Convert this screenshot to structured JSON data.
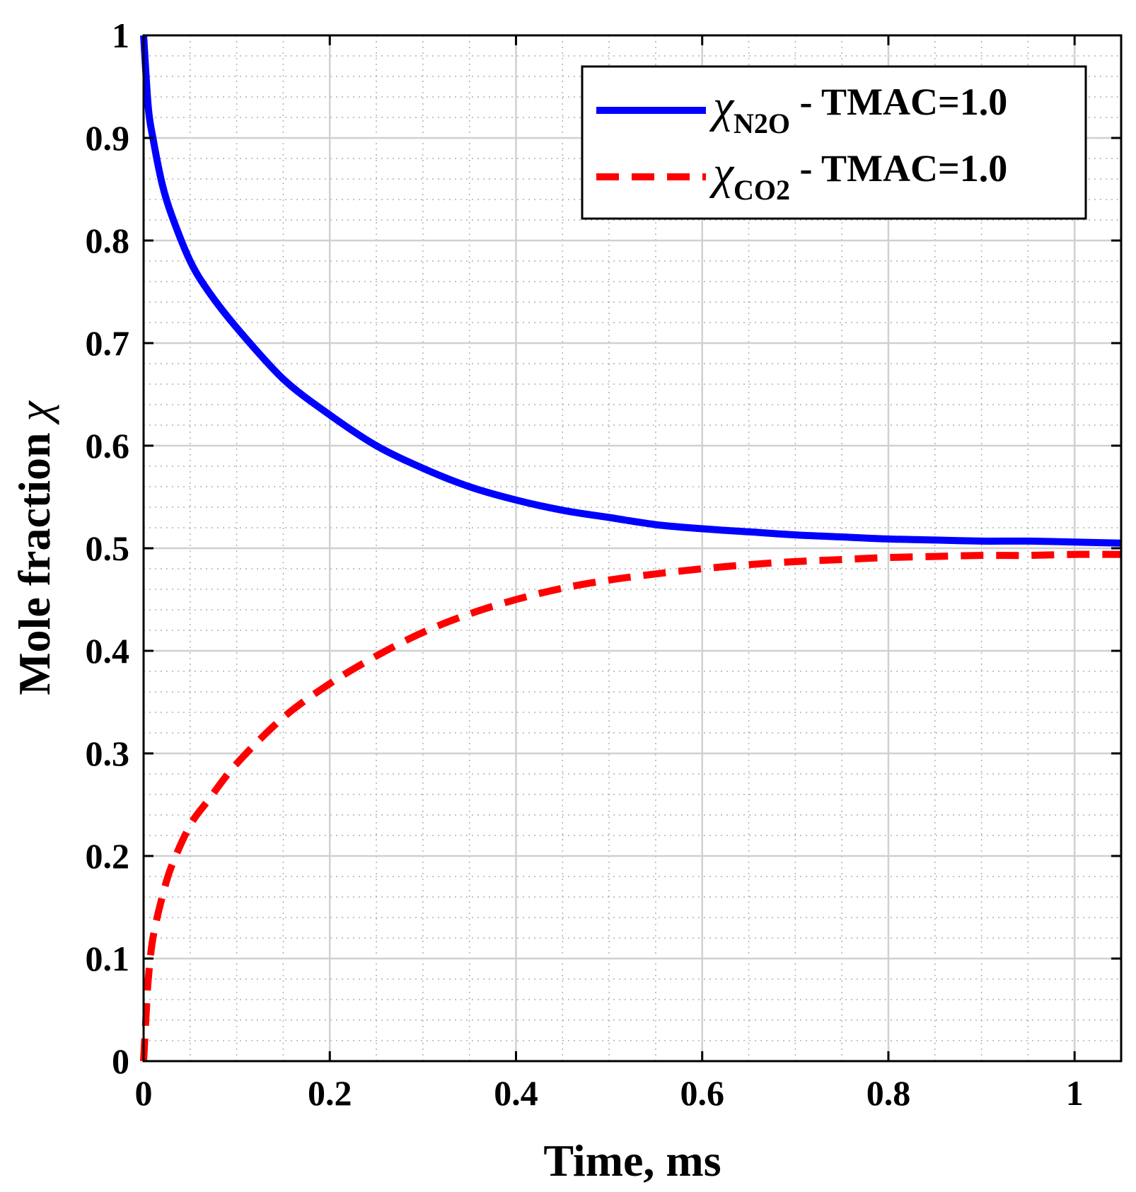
{
  "chart_data": {
    "type": "line",
    "xlabel": "Time, ms",
    "ylabel": "Mole fraction χ",
    "ylabel_text": "Mole fraction ",
    "ylabel_symbol": "χ",
    "xlim": [
      0,
      1.05
    ],
    "ylim": [
      0,
      1
    ],
    "x_ticks": [
      0,
      0.2,
      0.4,
      0.6,
      0.8,
      1
    ],
    "x_tick_labels": [
      "0",
      "0.2",
      "0.4",
      "0.6",
      "0.8",
      "1"
    ],
    "y_ticks": [
      0,
      0.1,
      0.2,
      0.3,
      0.4,
      0.5,
      0.6,
      0.7,
      0.8,
      0.9,
      1
    ],
    "y_tick_labels": [
      "0",
      "0.1",
      "0.2",
      "0.3",
      "0.4",
      "0.5",
      "0.6",
      "0.7",
      "0.8",
      "0.9",
      "1"
    ],
    "grid": true,
    "minor_grid": true,
    "legend_position": "top-right",
    "series": [
      {
        "name": "χN2O - TMAC=1.0",
        "symbol": "χ",
        "subscript": "N2O",
        "suffix": " - TMAC=1.0",
        "style": "solid",
        "color": "#0000ff",
        "x": [
          0,
          0.005,
          0.01,
          0.02,
          0.03,
          0.05,
          0.07,
          0.1,
          0.15,
          0.2,
          0.25,
          0.3,
          0.35,
          0.4,
          0.45,
          0.5,
          0.55,
          0.6,
          0.65,
          0.7,
          0.75,
          0.8,
          0.85,
          0.9,
          0.95,
          1.0,
          1.05
        ],
        "values": [
          1.0,
          0.93,
          0.9,
          0.855,
          0.825,
          0.78,
          0.75,
          0.715,
          0.665,
          0.63,
          0.6,
          0.578,
          0.56,
          0.547,
          0.537,
          0.53,
          0.523,
          0.519,
          0.516,
          0.513,
          0.511,
          0.509,
          0.508,
          0.507,
          0.507,
          0.506,
          0.505
        ]
      },
      {
        "name": "χCO2 - TMAC=1.0",
        "symbol": "χ",
        "subscript": "CO2",
        "suffix": " - TMAC=1.0",
        "style": "dashed",
        "color": "#ff0000",
        "x": [
          0,
          0.003,
          0.005,
          0.01,
          0.02,
          0.03,
          0.05,
          0.07,
          0.1,
          0.15,
          0.2,
          0.25,
          0.3,
          0.35,
          0.4,
          0.45,
          0.5,
          0.55,
          0.6,
          0.65,
          0.7,
          0.75,
          0.8,
          0.85,
          0.9,
          0.95,
          1.0,
          1.05
        ],
        "values": [
          0.0,
          0.05,
          0.08,
          0.12,
          0.16,
          0.19,
          0.23,
          0.255,
          0.29,
          0.335,
          0.368,
          0.395,
          0.418,
          0.436,
          0.45,
          0.461,
          0.469,
          0.475,
          0.48,
          0.484,
          0.487,
          0.489,
          0.491,
          0.492,
          0.493,
          0.493,
          0.494,
          0.494
        ]
      }
    ]
  }
}
